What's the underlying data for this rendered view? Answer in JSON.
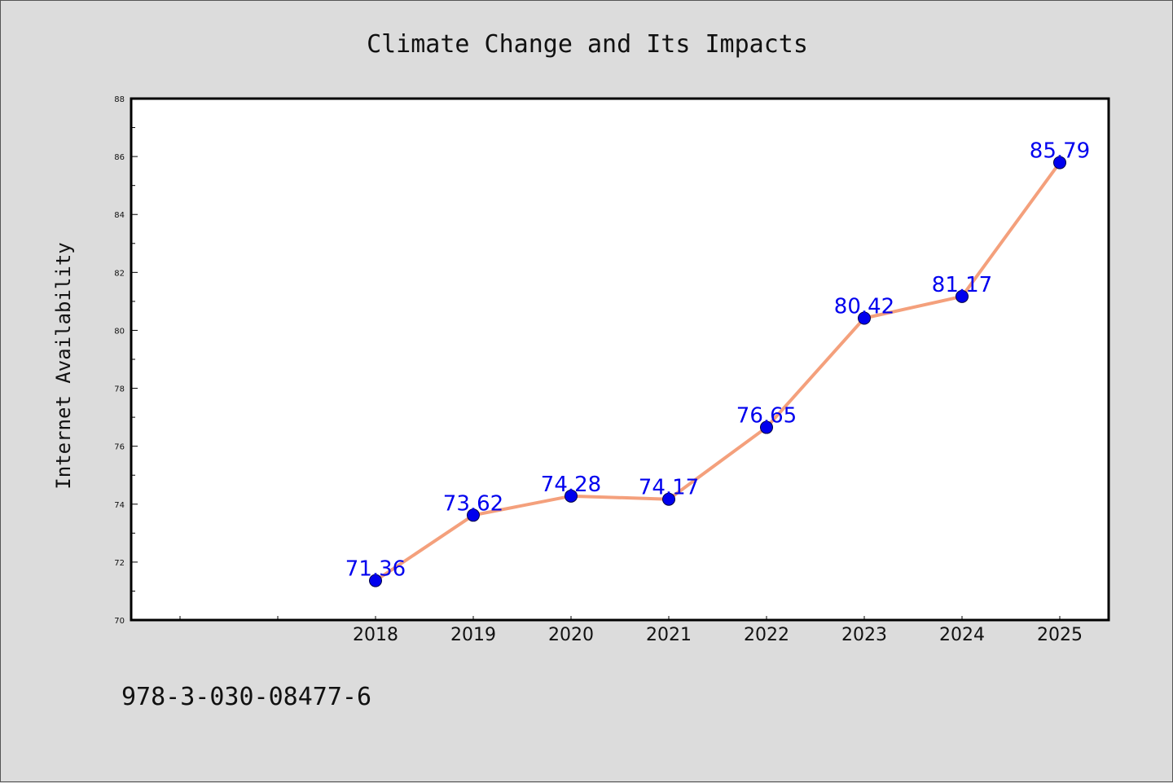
{
  "chart_data": {
    "type": "line",
    "title": "Climate Change and Its Impacts",
    "xlabel": "",
    "ylabel": "Internet Availability",
    "x": [
      "2018",
      "2019",
      "2020",
      "2021",
      "2022",
      "2023",
      "2024",
      "2025"
    ],
    "series": [
      {
        "values": [
          71.36,
          73.62,
          74.28,
          74.17,
          76.65,
          80.42,
          81.17,
          85.79
        ],
        "labels": [
          "71.36",
          "73.62",
          "74.28",
          "74.17",
          "76.65",
          "80.42",
          "81.17",
          "85.79"
        ]
      }
    ],
    "ylim": [
      70,
      88
    ],
    "yticks": [
      "70",
      "72",
      "74",
      "76",
      "78",
      "80",
      "82",
      "84",
      "86",
      "88"
    ],
    "grid": false,
    "legend": "none",
    "line_color": "#f4a07c",
    "marker_color": "#0000ee",
    "label_color": "#0000ee"
  },
  "footer": {
    "isbn": "978-3-030-08477-6"
  }
}
